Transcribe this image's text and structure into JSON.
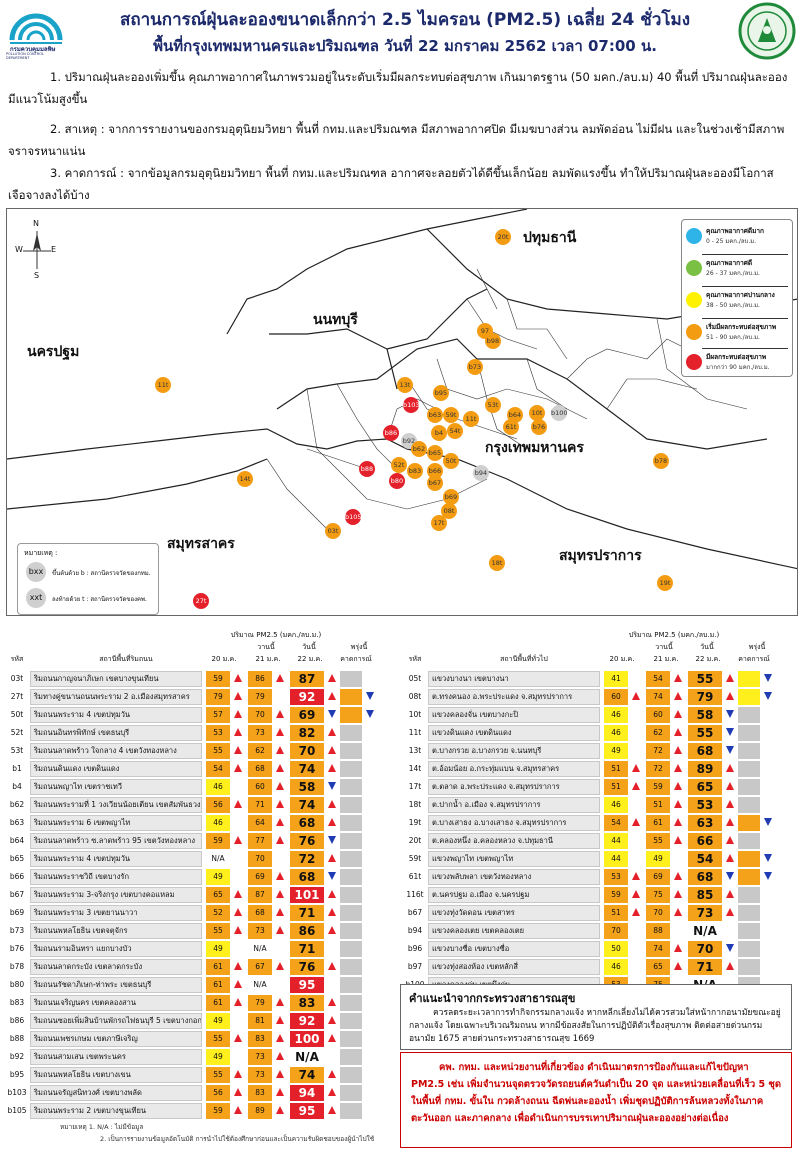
{
  "header": {
    "title_line1": "สถานการณ์ฝุ่นละอองขนาดเล็กกว่า 2.5 ไมครอน (PM2.5) เฉลี่ย 24 ชั่วโมง",
    "title_line2": "พื้นที่กรุงเทพมหานครและปริมณฑล วันที่ 22 มกราคม 2562 เวลา 07:00 น.",
    "logo_left_text": "กรมควบคุมมลพิษ",
    "logo_left_sub": "POLLUTION CONTROL DEPARTMENT"
  },
  "paragraphs": [
    "1. ปริมาณฝุ่นละอองเพิ่มขึ้น คุณภาพอากาศในภาพรวมอยู่ในระดับเริ่มมีผลกระทบต่อสุขภาพ เกินมาตรฐาน (50 มคก./ลบ.ม) 40 พื้นที่ ปริมาณฝุ่นละออง มีแนวโน้มสูงขึ้น",
    "2. สาเหตุ : จากการรายงานของกรมอุตุนิยมวิทยา พื้นที่ กทม.และปริมณฑล มีสภาพอากาศปิด มีเมฆบางส่วน ลมพัดอ่อน ไม่มีฝน และในช่วงเช้ามีสภาพ จราจรหนาแน่น",
    "3. คาดการณ์ : จากข้อมูลกรมอุตุนิยมวิทยา พื้นที่ กทม.และปริมณฑล อากาศจะลอยตัวได้ดีขึ้นเล็กน้อย ลมพัดแรงขึ้น ทำให้ปริมาณฝุ่นละอองมีโอกาส เจือจางลงได้บ้าง"
  ],
  "map": {
    "provinces": [
      "ปทุมธานี",
      "นนทบุรี",
      "นครปฐม",
      "กรุงเทพมหานคร",
      "สมุทรสาคร",
      "สมุทรปราการ"
    ],
    "compass": {
      "n": "N",
      "s": "S",
      "e": "E",
      "w": "W"
    },
    "legend": [
      {
        "title": "คุณภาพอากาศดีมาก",
        "range": "0 - 25 มคก./ลบ.ม.",
        "color": "#2fb4e9"
      },
      {
        "title": "คุณภาพอากาศดี",
        "range": "26 - 37 มคก./ลบ.ม.",
        "color": "#7ac143"
      },
      {
        "title": "คุณภาพอากาศปานกลาง",
        "range": "38 - 50 มคก./ลบ.ม.",
        "color": "#fff200"
      },
      {
        "title": "เริ่มมีผลกระทบต่อสุขภาพ",
        "range": "51 - 90 มคก./ลบ.ม.",
        "color": "#f39c12"
      },
      {
        "title": "มีผลกระทบต่อสุขภาพ",
        "range": "มากกว่า 90 มคก./ลบ.ม.",
        "color": "#e4202a"
      }
    ],
    "note": {
      "title": "หมายเหตุ :",
      "b_sample": "bxx",
      "b_text": "ขึ้นต้นด้วย b : สถานีตรวจวัดของกทม.",
      "t_sample": "xxt",
      "t_text": "ลงท้ายด้วย t : สถานีตรวจวัดของคพ."
    },
    "stations": [
      {
        "id": "20t",
        "c": "o"
      },
      {
        "id": "97",
        "c": "o"
      },
      {
        "id": "b98",
        "c": "o"
      },
      {
        "id": "b73",
        "c": "o"
      },
      {
        "id": "11t",
        "c": "o"
      },
      {
        "id": "13t",
        "c": "o"
      },
      {
        "id": "b95",
        "c": "o"
      },
      {
        "id": "b103",
        "c": "r"
      },
      {
        "id": "b63",
        "c": "o"
      },
      {
        "id": "59t",
        "c": "o"
      },
      {
        "id": "11t",
        "c": "o"
      },
      {
        "id": "53t",
        "c": "o"
      },
      {
        "id": "b64",
        "c": "o"
      },
      {
        "id": "10t",
        "c": "o"
      },
      {
        "id": "b100",
        "c": "g"
      },
      {
        "id": "b76",
        "c": "o"
      },
      {
        "id": "61t",
        "c": "o"
      },
      {
        "id": "b86",
        "c": "r"
      },
      {
        "id": "b92",
        "c": "g"
      },
      {
        "id": "b4",
        "c": "o"
      },
      {
        "id": "54t",
        "c": "o"
      },
      {
        "id": "b62",
        "c": "o"
      },
      {
        "id": "b65",
        "c": "o"
      },
      {
        "id": "52t",
        "c": "o"
      },
      {
        "id": "b66",
        "c": "o"
      },
      {
        "id": "50t",
        "c": "o"
      },
      {
        "id": "b83",
        "c": "o"
      },
      {
        "id": "b88",
        "c": "r"
      },
      {
        "id": "b80",
        "c": "r"
      },
      {
        "id": "b67",
        "c": "o"
      },
      {
        "id": "b94",
        "c": "g"
      },
      {
        "id": "b78",
        "c": "o"
      },
      {
        "id": "14t",
        "c": "o"
      },
      {
        "id": "b69",
        "c": "o"
      },
      {
        "id": "08t",
        "c": "o"
      },
      {
        "id": "b105",
        "c": "r"
      },
      {
        "id": "17t",
        "c": "o"
      },
      {
        "id": "03t",
        "c": "o"
      },
      {
        "id": "18t",
        "c": "o"
      },
      {
        "id": "19t",
        "c": "o"
      },
      {
        "id": "27t",
        "c": "r"
      }
    ]
  },
  "tables": {
    "header_pm": "ปริมาณ PM2.5 (มคก./ลบ.ม.)",
    "col_code": "รหัส",
    "col_roadside": "สถานีพื้นที่ริมถนน",
    "col_general": "สถานีพื้นที่ทั่วไป",
    "col_d20": "20 ม.ค.",
    "col_d21": "21 ม.ค.",
    "col_d22": "22 ม.ค.",
    "col_yesterday": "วานนี้",
    "col_today": "วันนี้",
    "col_tomorrow": "พรุ่งนี้",
    "col_forecast": "คาดการณ์",
    "left": [
      {
        "code": "03t",
        "name": "ริมถนนกาญจนาภิเษก เขตบางขุนเทียน",
        "d20": "59",
        "a20": "up",
        "d21": "86",
        "a21": "up",
        "d22": "87",
        "a22": "up",
        "c22": "bo",
        "f": "bgr",
        "fa": ""
      },
      {
        "code": "27t",
        "name": "ริมทางคู่ขนานถนนพระราม 2 อ.เมืองสมุทรสาคร",
        "d20": "79",
        "a20": "up",
        "d21": "79",
        "a21": "",
        "d22": "92",
        "a22": "up",
        "c22": "br",
        "f": "bo",
        "fa": "dn"
      },
      {
        "code": "50t",
        "name": "ริมถนนพระราม 4 เขตปทุมวัน",
        "d20": "57",
        "a20": "up",
        "d21": "70",
        "a21": "up",
        "d22": "69",
        "a22": "dn",
        "c22": "bo",
        "f": "bo",
        "fa": "dn"
      },
      {
        "code": "52t",
        "name": "ริมถนนอินทรพิทักษ์ เขตธนบุรี",
        "d20": "53",
        "a20": "up",
        "d21": "73",
        "a21": "up",
        "d22": "82",
        "a22": "up",
        "c22": "bo",
        "f": "bgr",
        "fa": ""
      },
      {
        "code": "53t",
        "name": "ริมถนนลาดพร้าว ใจกลาง 4 เขตวังทองหลาง",
        "d20": "55",
        "a20": "up",
        "d21": "62",
        "a21": "up",
        "d22": "70",
        "a22": "up",
        "c22": "bo",
        "f": "bgr",
        "fa": ""
      },
      {
        "code": "b1",
        "name": "ริมถนนดินแดง เขตดินแดง",
        "d20": "54",
        "a20": "up",
        "d21": "68",
        "a21": "up",
        "d22": "74",
        "a22": "up",
        "c22": "bo",
        "f": "bgr",
        "fa": ""
      },
      {
        "code": "b4",
        "name": "ริมถนนพญาไท เขตราชเทวี",
        "d20": "46",
        "a20": "",
        "d21": "60",
        "a21": "up",
        "d22": "58",
        "a22": "dn",
        "c22": "bo",
        "f": "bgr",
        "fa": ""
      },
      {
        "code": "b62",
        "name": "ริมถนนพระรามที่ 1 วงเวียนน้อยเตียน เขตสัมพันธวงศ์",
        "d20": "56",
        "a20": "up",
        "d21": "71",
        "a21": "up",
        "d22": "74",
        "a22": "up",
        "c22": "bo",
        "f": "bgr",
        "fa": ""
      },
      {
        "code": "b63",
        "name": "ริมถนนพระราม 6 เขตพญาไท",
        "d20": "46",
        "a20": "",
        "d21": "64",
        "a21": "up",
        "d22": "68",
        "a22": "up",
        "c22": "bo",
        "f": "bgr",
        "fa": ""
      },
      {
        "code": "b64",
        "name": "ริมถนนลาดพร้าว ซ.ลาดพร้าว 95 เขตวังทองหลาง",
        "d20": "59",
        "a20": "up",
        "d21": "77",
        "a21": "up",
        "d22": "76",
        "a22": "dn",
        "c22": "bo",
        "f": "bgr",
        "fa": ""
      },
      {
        "code": "b65",
        "name": "ริมถนนพระราม 4 เขตปทุมวัน",
        "d20": "N/A",
        "a20": "",
        "d21": "70",
        "a21": "",
        "d22": "72",
        "a22": "up",
        "c22": "bo",
        "f": "bgr",
        "fa": ""
      },
      {
        "code": "b66",
        "name": "ริมถนนพระราชวิถี เขตบางรัก",
        "d20": "49",
        "a20": "",
        "d21": "69",
        "a21": "up",
        "d22": "68",
        "a22": "dn",
        "c22": "bo",
        "f": "bgr",
        "fa": ""
      },
      {
        "code": "b67",
        "name": "ริมถนนพระราม 3-จริงกรุง เขตบางคอแหลม",
        "d20": "65",
        "a20": "up",
        "d21": "87",
        "a21": "up",
        "d22": "101",
        "a22": "up",
        "c22": "br",
        "f": "bgr",
        "fa": ""
      },
      {
        "code": "b69",
        "name": "ริมถนนพระราม 3 เขตยานนาวา",
        "d20": "52",
        "a20": "up",
        "d21": "68",
        "a21": "up",
        "d22": "71",
        "a22": "up",
        "c22": "bo",
        "f": "bgr",
        "fa": ""
      },
      {
        "code": "b73",
        "name": "ริมถนนพหลโยธิน เขตจตุจักร",
        "d20": "55",
        "a20": "up",
        "d21": "73",
        "a21": "up",
        "d22": "86",
        "a22": "up",
        "c22": "bo",
        "f": "bgr",
        "fa": ""
      },
      {
        "code": "b76",
        "name": "ริมถนนรามอินทรา แยกบางบัว",
        "d20": "49",
        "a20": "",
        "d21": "N/A",
        "a21": "",
        "d22": "71",
        "a22": "",
        "c22": "bo",
        "f": "bgr",
        "fa": ""
      },
      {
        "code": "b78",
        "name": "ริมถนนลาดกระบัง เขตลาดกระบัง",
        "d20": "61",
        "a20": "up",
        "d21": "67",
        "a21": "up",
        "d22": "76",
        "a22": "up",
        "c22": "bo",
        "f": "bgr",
        "fa": ""
      },
      {
        "code": "b80",
        "name": "ริมถนนรัชดาภิเษก-ท่าพระ เขตธนบุรี",
        "d20": "61",
        "a20": "up",
        "d21": "N/A",
        "a21": "",
        "d22": "95",
        "a22": "",
        "c22": "br",
        "f": "bgr",
        "fa": ""
      },
      {
        "code": "b83",
        "name": "ริมถนนเจริญนคร เขตคลองสาน",
        "d20": "61",
        "a20": "up",
        "d21": "79",
        "a21": "up",
        "d22": "83",
        "a22": "up",
        "c22": "bo",
        "f": "bgr",
        "fa": ""
      },
      {
        "code": "b86",
        "name": "ริมถนนซอยเพิ่มสินบ้านพักรถไฟธนบุรี 5 เขตบางกอกน้อย",
        "d20": "49",
        "a20": "",
        "d21": "81",
        "a21": "up",
        "d22": "92",
        "a22": "up",
        "c22": "br",
        "f": "bgr",
        "fa": ""
      },
      {
        "code": "b88",
        "name": "ริมถนนเพชรเกษม เขตภาษีเจริญ",
        "d20": "55",
        "a20": "up",
        "d21": "83",
        "a21": "up",
        "d22": "100",
        "a22": "up",
        "c22": "br",
        "f": "bgr",
        "fa": ""
      },
      {
        "code": "b92",
        "name": "ริมถนนสามเสน เขตพระนคร",
        "d20": "49",
        "a20": "",
        "d21": "73",
        "a21": "up",
        "d22": "N/A",
        "a22": "",
        "c22": "bw",
        "f": "bgr",
        "fa": ""
      },
      {
        "code": "b95",
        "name": "ริมถนนพหลโยธิน เขตบางเขน",
        "d20": "55",
        "a20": "up",
        "d21": "73",
        "a21": "up",
        "d22": "74",
        "a22": "up",
        "c22": "bo",
        "f": "bgr",
        "fa": ""
      },
      {
        "code": "b103",
        "name": "ริมถนนจรัญสนิทวงศ์ เขตบางพลัด",
        "d20": "56",
        "a20": "up",
        "d21": "83",
        "a21": "up",
        "d22": "94",
        "a22": "up",
        "c22": "br",
        "f": "bgr",
        "fa": ""
      },
      {
        "code": "b105",
        "name": "ริมถนนพระราม 2 เขตบางขุนเทียน",
        "d20": "59",
        "a20": "up",
        "d21": "89",
        "a21": "up",
        "d22": "95",
        "a22": "up",
        "c22": "br",
        "f": "bgr",
        "fa": ""
      }
    ],
    "right": [
      {
        "code": "05t",
        "name": "แขวงบางนา เขตบางนา",
        "d20": "41",
        "a20": "",
        "d21": "54",
        "a21": "up",
        "d22": "55",
        "a22": "up",
        "c22": "bo",
        "f": "by",
        "fa": "dn"
      },
      {
        "code": "08t",
        "name": "ต.ทรงคนอง อ.พระประแดง จ.สมุทรปราการ",
        "d20": "60",
        "a20": "up",
        "d21": "74",
        "a21": "up",
        "d22": "79",
        "a22": "up",
        "c22": "bo",
        "f": "by",
        "fa": "dn"
      },
      {
        "code": "10t",
        "name": "แขวงคลองจั่น เขตบางกะปิ",
        "d20": "46",
        "a20": "",
        "d21": "60",
        "a21": "up",
        "d22": "58",
        "a22": "dn",
        "c22": "bo",
        "f": "bgr",
        "fa": ""
      },
      {
        "code": "11t",
        "name": "แขวงดินแดง เขตดินแดง",
        "d20": "46",
        "a20": "",
        "d21": "62",
        "a21": "up",
        "d22": "55",
        "a22": "dn",
        "c22": "bo",
        "f": "bgr",
        "fa": ""
      },
      {
        "code": "13t",
        "name": "ต.บางกรวย อ.บางกรวย จ.นนทบุรี",
        "d20": "49",
        "a20": "",
        "d21": "72",
        "a21": "up",
        "d22": "68",
        "a22": "dn",
        "c22": "bo",
        "f": "bgr",
        "fa": ""
      },
      {
        "code": "14t",
        "name": "ต.อ้อมน้อย อ.กระทุ่มแบน จ.สมุทรสาคร",
        "d20": "51",
        "a20": "up",
        "d21": "72",
        "a21": "up",
        "d22": "89",
        "a22": "up",
        "c22": "bo",
        "f": "bgr",
        "fa": ""
      },
      {
        "code": "17t",
        "name": "ต.ตลาด อ.พระประแดง จ.สมุทรปราการ",
        "d20": "51",
        "a20": "up",
        "d21": "59",
        "a21": "up",
        "d22": "65",
        "a22": "up",
        "c22": "bo",
        "f": "bgr",
        "fa": ""
      },
      {
        "code": "18t",
        "name": "ต.ปากน้ำ อ.เมือง จ.สมุทรปราการ",
        "d20": "46",
        "a20": "",
        "d21": "51",
        "a21": "up",
        "d22": "53",
        "a22": "up",
        "c22": "bo",
        "f": "bgr",
        "fa": ""
      },
      {
        "code": "19t",
        "name": "ต.บางเสาธง อ.บางเสาธง จ.สมุทรปราการ",
        "d20": "54",
        "a20": "up",
        "d21": "61",
        "a21": "up",
        "d22": "63",
        "a22": "up",
        "c22": "bo",
        "f": "bo",
        "fa": "dn"
      },
      {
        "code": "20t",
        "name": "ต.คลองหนึ่ง อ.คลองหลวง จ.ปทุมธานี",
        "d20": "44",
        "a20": "",
        "d21": "55",
        "a21": "up",
        "d22": "66",
        "a22": "up",
        "c22": "bo",
        "f": "bgr",
        "fa": ""
      },
      {
        "code": "59t",
        "name": "แขวงพญาไท เขตพญาไท",
        "d20": "44",
        "a20": "",
        "d21": "49",
        "a21": "",
        "d22": "54",
        "a22": "up",
        "c22": "bo",
        "f": "bo",
        "fa": "dn"
      },
      {
        "code": "61t",
        "name": "แขวงพลับพลา เขตวังทองหลาง",
        "d20": "53",
        "a20": "up",
        "d21": "69",
        "a21": "up",
        "d22": "68",
        "a22": "dn",
        "c22": "bo",
        "f": "bo",
        "fa": "dn"
      },
      {
        "code": "116t",
        "name": "ต.นครปฐม อ.เมือง จ.นครปฐม",
        "d20": "59",
        "a20": "up",
        "d21": "75",
        "a21": "up",
        "d22": "85",
        "a22": "up",
        "c22": "bo",
        "f": "bgr",
        "fa": ""
      },
      {
        "code": "b67",
        "name": "แขวงทุ่งวัดดอน เขตสาทร",
        "d20": "51",
        "a20": "up",
        "d21": "70",
        "a21": "up",
        "d22": "73",
        "a22": "up",
        "c22": "bo",
        "f": "bgr",
        "fa": ""
      },
      {
        "code": "b94",
        "name": "แขวงคลองเตย เขตคลองเตย",
        "d20": "70",
        "a20": "",
        "d21": "88",
        "a21": "",
        "d22": "N/A",
        "a22": "",
        "c22": "bw",
        "f": "bgr",
        "fa": ""
      },
      {
        "code": "b96",
        "name": "แขวงบางซื่อ เขตบางซื่อ",
        "d20": "50",
        "a20": "",
        "d21": "74",
        "a21": "up",
        "d22": "70",
        "a22": "dn",
        "c22": "bo",
        "f": "bgr",
        "fa": ""
      },
      {
        "code": "b97",
        "name": "แขวงทุ่งสองห้อง เขตหลักสี่",
        "d20": "46",
        "a20": "",
        "d21": "65",
        "a21": "up",
        "d22": "71",
        "a22": "up",
        "c22": "bo",
        "f": "bgr",
        "fa": ""
      },
      {
        "code": "b100",
        "name": "แขวงคลองกุ่ม เขตบึงกุ่ม",
        "d20": "53",
        "a20": "",
        "d21": "75",
        "a21": "",
        "d22": "N/A",
        "a22": "",
        "c22": "bw",
        "f": "bgr",
        "fa": ""
      }
    ],
    "footnote1": "หมายเหตุ 1. N/A : ไม่มีข้อมูล",
    "footnote2": "2. เป็นการรายงานข้อมูลอัตโนมัติ การนำไปใช้ต้องศึกษาก่อนและเป็นความรับผิดชอบของผู้นำไปใช้"
  },
  "moph": {
    "title": "คำแนะนำจากกระทรวงสาธารณสุข",
    "body": "ควรลดระยะเวลาการทำกิจกรรมกลางแจ้ง หากหลีกเลี่ยงไม่ได้ควรสวมใส่หน้ากากอนามัยขณะอยู่กลางแจ้ง โดยเฉพาะบริเวณริมถนน หากมีข้อสงสัยในการปฏิบัติตัวเรื่องสุขภาพ ติดต่อสายด่วนกรมอนามัย 1675 สายด่วนกระทรวงสาธารณสุข 1669"
  },
  "bma": {
    "body": "คพ. กทม. และหน่วยงานที่เกี่ยวข้อง ดำเนินมาตรการป้องกันและแก้ไขปัญหา PM2.5 เช่น เพิ่มจำนวนจุดตรวจวัดรถยนต์ควันดำเป็น 20 จุด และหน่วยเคลื่อนที่เร็ว 5 ชุด ในพื้นที่ กทม. ขั้นใน กวดล้างถนน ฉีดพ่นละอองน้ำ เพิ่มชุดปฏิบัติการล้นหลวงทั้งในภาคตะวันออก และภาคกลาง เพื่อดำเนินการบรรเทาปริมาณฝุ่นละอองอย่างต่อเนื่อง"
  }
}
